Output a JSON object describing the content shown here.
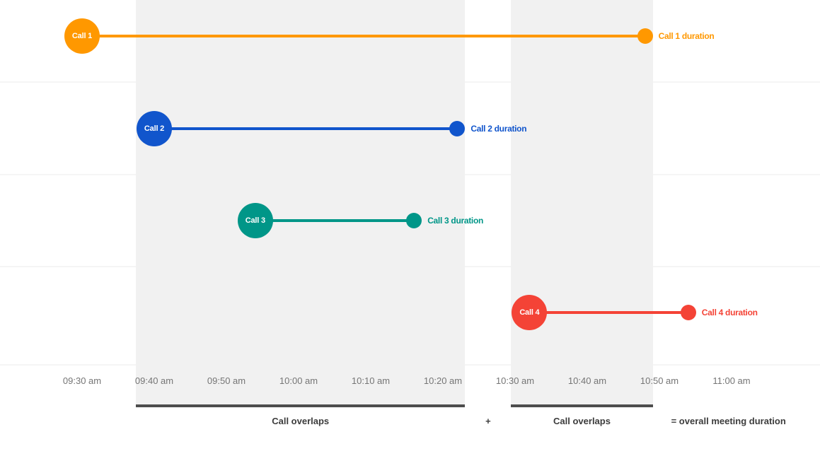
{
  "chart_data": {
    "type": "line",
    "subtype": "timeline-gantt",
    "title": "",
    "x_axis": {
      "tick_labels": [
        "09:30 am",
        "09:40 am",
        "09:50 am",
        "10:00 am",
        "10:10 am",
        "10:20 am",
        "10:30 am",
        "10:40 am",
        "10:50 am",
        "11:00 am"
      ],
      "start": "09:30 am",
      "end": "11:00 am",
      "interval_minutes": 10,
      "grid": "horizontal-only"
    },
    "series": [
      {
        "name": "Call 1",
        "marker_label": "Call 1",
        "duration_label": "Call 1 duration",
        "color": "#FF9800",
        "start": "09:30",
        "end": "10:48"
      },
      {
        "name": "Call 2",
        "marker_label": "Call 2",
        "duration_label": "Call 2 duration",
        "color": "#1155CC",
        "start": "09:40",
        "end": "10:22"
      },
      {
        "name": "Call 3",
        "marker_label": "Call 3",
        "duration_label": "Call 3 duration",
        "color": "#009688",
        "start": "09:54",
        "end": "10:16"
      },
      {
        "name": "Call 4",
        "marker_label": "Call 4",
        "duration_label": "Call 4 duration",
        "color": "#F44336",
        "start": "10:32",
        "end": "10:54"
      }
    ],
    "overlap_bands": [
      {
        "start": "09:40",
        "end": "10:22",
        "label": "Call overlaps",
        "between": "Call 1 and Call 2"
      },
      {
        "start": "10:32",
        "end": "10:48",
        "label": "Call overlaps",
        "between": "Call 1 and Call 4"
      }
    ],
    "annotations": {
      "plus": "+",
      "equals": "= overall meeting duration"
    },
    "colors": {
      "band_fill": "#f1f1f1",
      "gridline": "#f5f5f5",
      "underbar": "#4d4d4d",
      "axis_text": "#757575",
      "annotation_text": "#3c3c3c",
      "background": "#ffffff"
    }
  }
}
